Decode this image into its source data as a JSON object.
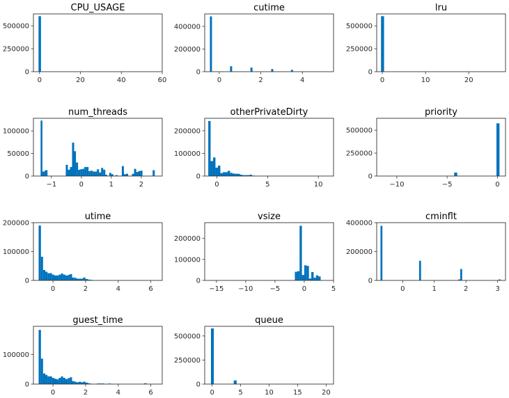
{
  "figure": {
    "bar_color": "#0072bd"
  },
  "chart_data": [
    {
      "type": "bar",
      "title": "CPU_USAGE",
      "xlim": [
        -3,
        60
      ],
      "ylim": [
        0,
        630000
      ],
      "xticks": [
        0,
        20,
        40,
        60
      ],
      "yticks": [
        0,
        250000,
        500000
      ],
      "bins": [
        [
          -0.5,
          0.7,
          605000
        ]
      ]
    },
    {
      "type": "bar",
      "title": "cutime",
      "xlim": [
        -0.7,
        5.5
      ],
      "ylim": [
        0,
        510000
      ],
      "xticks": [
        0,
        2,
        4
      ],
      "yticks": [
        0,
        200000,
        400000
      ],
      "bins": [
        [
          -0.45,
          -0.35,
          488000
        ],
        [
          0.52,
          0.62,
          48000
        ],
        [
          1.5,
          1.6,
          36000
        ],
        [
          2.5,
          2.6,
          23000
        ],
        [
          3.45,
          3.55,
          16000
        ]
      ]
    },
    {
      "type": "bar",
      "title": "lru",
      "xlim": [
        -1.3,
        28.5
      ],
      "ylim": [
        0,
        630000
      ],
      "xticks": [
        0,
        10,
        20
      ],
      "yticks": [
        0,
        250000,
        500000
      ],
      "bins": [
        [
          -0.3,
          0.4,
          605000
        ]
      ]
    },
    {
      "type": "bar",
      "title": "num_threads",
      "xlim": [
        -1.6,
        2.7
      ],
      "ylim": [
        0,
        128000
      ],
      "xticks": [
        -1,
        0,
        1,
        2
      ],
      "yticks": [
        0,
        50000,
        100000
      ],
      "bins": [
        [
          -1.36,
          -1.3,
          123000
        ],
        [
          -1.3,
          -1.22,
          10000
        ],
        [
          -1.22,
          -1.13,
          13000
        ],
        [
          -0.52,
          -0.45,
          25000
        ],
        [
          -0.45,
          -0.38,
          14000
        ],
        [
          -0.38,
          -0.31,
          20000
        ],
        [
          -0.31,
          -0.24,
          74000
        ],
        [
          -0.24,
          -0.18,
          55000
        ],
        [
          -0.18,
          -0.11,
          30000
        ],
        [
          -0.11,
          -0.04,
          14000
        ],
        [
          -0.04,
          0.03,
          15000
        ],
        [
          0.03,
          0.1,
          16000
        ],
        [
          0.1,
          0.17,
          20000
        ],
        [
          0.17,
          0.24,
          20000
        ],
        [
          0.24,
          0.31,
          11000
        ],
        [
          0.31,
          0.38,
          12000
        ],
        [
          0.38,
          0.45,
          10000
        ],
        [
          0.45,
          0.52,
          10000
        ],
        [
          0.52,
          0.59,
          15000
        ],
        [
          0.59,
          0.66,
          8000
        ],
        [
          0.66,
          0.73,
          18000
        ],
        [
          0.73,
          0.8,
          14000
        ],
        [
          0.8,
          0.86,
          3000
        ],
        [
          0.93,
          1.0,
          7000
        ],
        [
          1.0,
          1.07,
          4000
        ],
        [
          1.14,
          1.21,
          2000
        ],
        [
          1.35,
          1.42,
          22000
        ],
        [
          1.42,
          1.49,
          4000
        ],
        [
          1.49,
          1.56,
          5000
        ],
        [
          1.69,
          1.76,
          5000
        ],
        [
          1.76,
          1.83,
          16000
        ],
        [
          1.83,
          1.9,
          9000
        ],
        [
          1.9,
          1.97,
          11000
        ],
        [
          1.97,
          2.04,
          12000
        ],
        [
          2.38,
          2.45,
          13000
        ]
      ]
    },
    {
      "type": "bar",
      "title": "otherPrivateDirty",
      "xlim": [
        -1.2,
        11.5
      ],
      "ylim": [
        0,
        255000
      ],
      "xticks": [
        0,
        5,
        10
      ],
      "yticks": [
        0,
        100000,
        200000
      ],
      "bins": [
        [
          -0.85,
          -0.62,
          243000
        ],
        [
          -0.62,
          -0.38,
          66000
        ],
        [
          -0.38,
          -0.14,
          82000
        ],
        [
          -0.14,
          0.1,
          37000
        ],
        [
          0.1,
          0.34,
          46000
        ],
        [
          0.34,
          0.58,
          13000
        ],
        [
          0.58,
          0.82,
          17000
        ],
        [
          0.82,
          1.06,
          17000
        ],
        [
          1.06,
          1.3,
          23000
        ],
        [
          1.3,
          1.54,
          14000
        ],
        [
          1.54,
          1.78,
          11000
        ],
        [
          1.78,
          2.02,
          10000
        ],
        [
          2.02,
          2.26,
          10000
        ],
        [
          2.26,
          2.5,
          6000
        ],
        [
          2.5,
          2.74,
          4000
        ],
        [
          2.74,
          2.98,
          4000
        ],
        [
          2.98,
          3.22,
          4000
        ],
        [
          3.22,
          3.46,
          6000
        ],
        [
          3.46,
          3.7,
          2000
        ]
      ]
    },
    {
      "type": "bar",
      "title": "priority",
      "xlim": [
        -12,
        0.8
      ],
      "ylim": [
        0,
        630000
      ],
      "xticks": [
        -10,
        -5,
        0
      ],
      "yticks": [
        0,
        250000,
        500000
      ],
      "bins": [
        [
          -4.3,
          -4.0,
          38000
        ],
        [
          -0.1,
          0.2,
          575000
        ]
      ]
    },
    {
      "type": "bar",
      "title": "utime",
      "xlim": [
        -1.2,
        6.7
      ],
      "ylim": [
        0,
        200000
      ],
      "xticks": [
        0,
        2,
        4,
        6
      ],
      "yticks": [
        0,
        100000,
        200000
      ],
      "bins": [
        [
          -0.88,
          -0.74,
          190000
        ],
        [
          -0.74,
          -0.61,
          82000
        ],
        [
          -0.61,
          -0.47,
          36000
        ],
        [
          -0.47,
          -0.34,
          30000
        ],
        [
          -0.34,
          -0.2,
          25000
        ],
        [
          -0.2,
          -0.06,
          25000
        ],
        [
          -0.06,
          0.08,
          20000
        ],
        [
          0.08,
          0.21,
          17000
        ],
        [
          0.21,
          0.35,
          17000
        ],
        [
          0.35,
          0.49,
          20000
        ],
        [
          0.49,
          0.62,
          24000
        ],
        [
          0.62,
          0.76,
          20000
        ],
        [
          0.76,
          0.9,
          17000
        ],
        [
          0.9,
          1.03,
          19000
        ],
        [
          1.03,
          1.17,
          22000
        ],
        [
          1.17,
          1.31,
          10000
        ],
        [
          1.31,
          1.44,
          9000
        ],
        [
          1.44,
          1.58,
          6000
        ],
        [
          1.58,
          1.72,
          6000
        ],
        [
          1.72,
          1.85,
          6000
        ],
        [
          1.85,
          1.99,
          10000
        ],
        [
          1.99,
          2.13,
          5000
        ],
        [
          2.13,
          2.26,
          3000
        ],
        [
          2.26,
          2.4,
          2000
        ]
      ]
    },
    {
      "type": "bar",
      "title": "vsize",
      "xlim": [
        -17,
        5
      ],
      "ylim": [
        0,
        275000
      ],
      "xticks": [
        -15,
        -10,
        -5,
        0,
        5
      ],
      "yticks": [
        0,
        100000,
        200000
      ],
      "bins": [
        [
          -1.6,
          -1.2,
          41000
        ],
        [
          -1.2,
          -0.8,
          44000
        ],
        [
          -0.8,
          -0.4,
          260000
        ],
        [
          -0.4,
          0.0,
          26000
        ],
        [
          0.0,
          0.4,
          72000
        ],
        [
          0.4,
          0.8,
          69000
        ],
        [
          0.8,
          1.2,
          9000
        ],
        [
          1.2,
          1.6,
          40000
        ],
        [
          1.6,
          2.0,
          13000
        ],
        [
          2.0,
          2.4,
          24000
        ],
        [
          2.4,
          2.8,
          19000
        ]
      ]
    },
    {
      "type": "bar",
      "title": "cminflt",
      "xlim": [
        -0.82,
        3.25
      ],
      "ylim": [
        0,
        400000
      ],
      "xticks": [
        0,
        1,
        2,
        3
      ],
      "yticks": [
        0,
        200000,
        400000
      ],
      "bins": [
        [
          -0.7,
          -0.64,
          378000
        ],
        [
          0.52,
          0.58,
          136000
        ],
        [
          1.76,
          1.82,
          7000
        ],
        [
          1.82,
          1.88,
          79000
        ],
        [
          3.03,
          3.09,
          7000
        ]
      ]
    },
    {
      "type": "bar",
      "title": "guest_time",
      "xlim": [
        -1.2,
        6.7
      ],
      "ylim": [
        0,
        195000
      ],
      "xticks": [
        0,
        2,
        4,
        6
      ],
      "yticks": [
        0,
        100000
      ],
      "bins": [
        [
          -0.88,
          -0.74,
          183000
        ],
        [
          -0.74,
          -0.61,
          86000
        ],
        [
          -0.61,
          -0.47,
          36000
        ],
        [
          -0.47,
          -0.34,
          31000
        ],
        [
          -0.34,
          -0.2,
          26000
        ],
        [
          -0.2,
          -0.06,
          26000
        ],
        [
          -0.06,
          0.08,
          21000
        ],
        [
          0.08,
          0.21,
          18000
        ],
        [
          0.21,
          0.35,
          16000
        ],
        [
          0.35,
          0.49,
          21000
        ],
        [
          0.49,
          0.62,
          26000
        ],
        [
          0.62,
          0.76,
          21000
        ],
        [
          0.76,
          0.9,
          17000
        ],
        [
          0.9,
          1.03,
          20000
        ],
        [
          1.03,
          1.17,
          23000
        ],
        [
          1.17,
          1.31,
          10000
        ],
        [
          1.31,
          1.44,
          8000
        ],
        [
          1.44,
          1.58,
          6000
        ],
        [
          1.58,
          1.72,
          8000
        ],
        [
          1.72,
          1.85,
          6000
        ],
        [
          1.85,
          1.99,
          8000
        ],
        [
          1.99,
          2.13,
          5000
        ],
        [
          2.13,
          2.26,
          3000
        ],
        [
          2.26,
          2.4,
          1500
        ],
        [
          2.7,
          2.84,
          2000
        ],
        [
          2.84,
          3.0,
          2000
        ],
        [
          3.0,
          3.14,
          2000
        ],
        [
          3.4,
          3.54,
          2000
        ],
        [
          5.6,
          5.74,
          3000
        ]
      ]
    },
    {
      "type": "bar",
      "title": "queue",
      "xlim": [
        -1.3,
        21.3
      ],
      "ylim": [
        0,
        600000
      ],
      "xticks": [
        0,
        5,
        10,
        15,
        20
      ],
      "yticks": [
        0,
        250000,
        500000
      ],
      "bins": [
        [
          -0.2,
          0.3,
          578000
        ],
        [
          3.8,
          4.3,
          38000
        ]
      ]
    }
  ]
}
